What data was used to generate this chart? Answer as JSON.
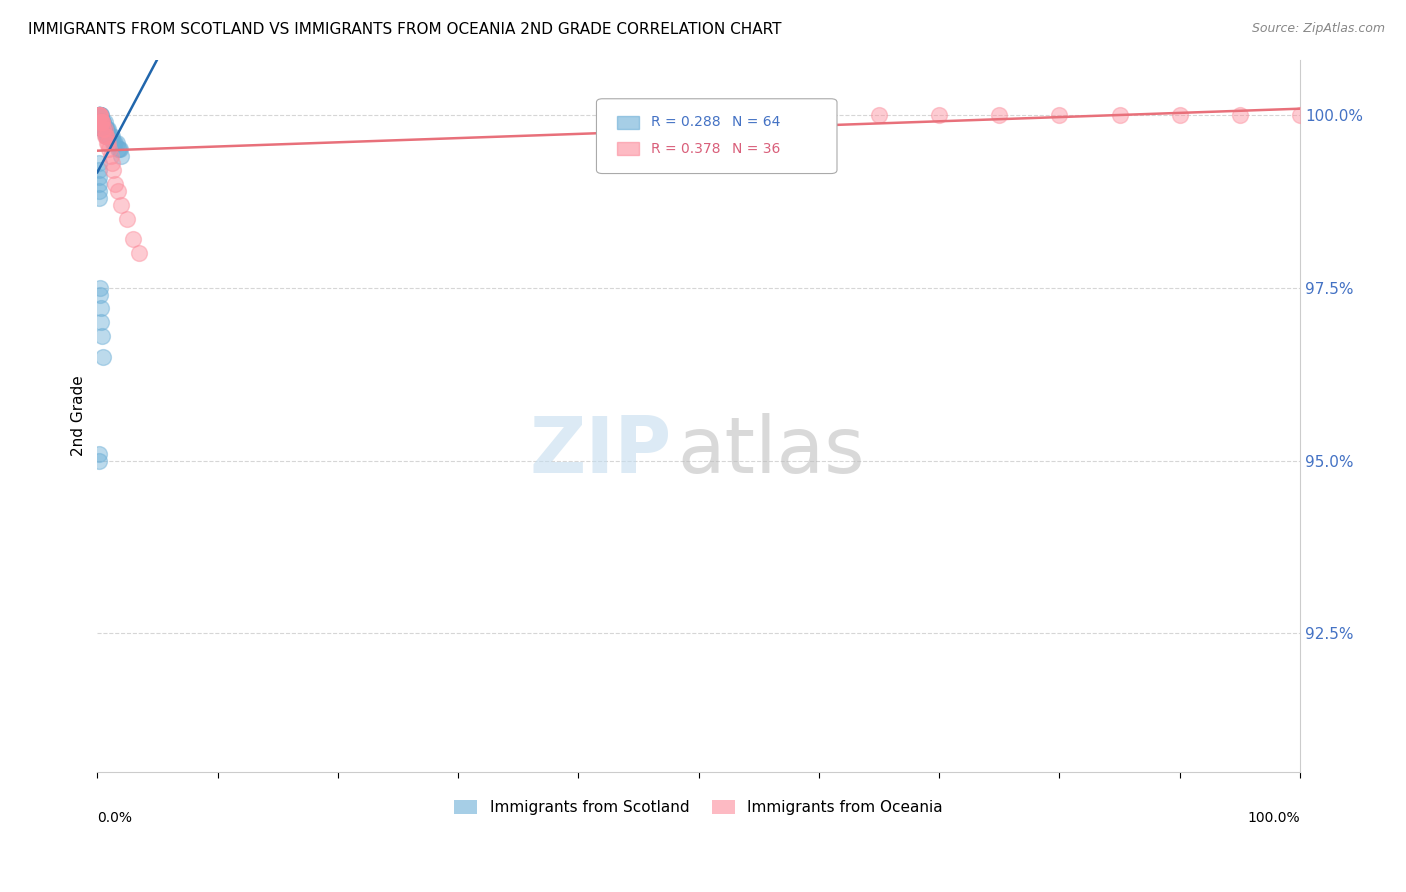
{
  "title": "IMMIGRANTS FROM SCOTLAND VS IMMIGRANTS FROM OCEANIA 2ND GRADE CORRELATION CHART",
  "source": "Source: ZipAtlas.com",
  "ylabel": "2nd Grade",
  "ytick_labels": [
    "100.0%",
    "97.5%",
    "95.0%",
    "92.5%"
  ],
  "ytick_values": [
    1.0,
    0.975,
    0.95,
    0.925
  ],
  "xlim": [
    0.0,
    1.0
  ],
  "ylim": [
    0.905,
    1.008
  ],
  "legend_r1": "R = 0.288",
  "legend_n1": "N = 64",
  "legend_r2": "R = 0.378",
  "legend_n2": "N = 36",
  "scotland_color": "#6baed6",
  "oceania_color": "#fc8d9c",
  "scotland_line_color": "#2166ac",
  "oceania_line_color": "#e8707a",
  "grid_color": "#cccccc",
  "scotland_x": [
    0.001,
    0.001,
    0.001,
    0.001,
    0.001,
    0.001,
    0.001,
    0.001,
    0.001,
    0.001,
    0.002,
    0.002,
    0.002,
    0.002,
    0.002,
    0.003,
    0.003,
    0.003,
    0.003,
    0.003,
    0.004,
    0.004,
    0.004,
    0.004,
    0.005,
    0.005,
    0.005,
    0.005,
    0.006,
    0.006,
    0.006,
    0.007,
    0.007,
    0.007,
    0.008,
    0.008,
    0.009,
    0.009,
    0.01,
    0.01,
    0.011,
    0.012,
    0.013,
    0.014,
    0.015,
    0.016,
    0.017,
    0.018,
    0.019,
    0.02,
    0.001,
    0.001,
    0.001,
    0.001,
    0.001,
    0.001,
    0.002,
    0.002,
    0.003,
    0.003,
    0.004,
    0.005,
    0.001,
    0.001
  ],
  "scotland_y": [
    1.0,
    1.0,
    1.0,
    1.0,
    1.0,
    1.0,
    1.0,
    1.0,
    1.0,
    1.0,
    1.0,
    1.0,
    1.0,
    1.0,
    0.999,
    1.0,
    1.0,
    0.999,
    0.999,
    0.999,
    0.999,
    0.999,
    0.999,
    0.998,
    0.999,
    0.999,
    0.998,
    0.998,
    0.999,
    0.998,
    0.998,
    0.998,
    0.998,
    0.997,
    0.998,
    0.997,
    0.998,
    0.997,
    0.997,
    0.997,
    0.997,
    0.997,
    0.996,
    0.996,
    0.996,
    0.996,
    0.995,
    0.995,
    0.995,
    0.994,
    0.993,
    0.992,
    0.991,
    0.99,
    0.989,
    0.988,
    0.975,
    0.974,
    0.972,
    0.97,
    0.968,
    0.965,
    0.951,
    0.95
  ],
  "oceania_x": [
    0.001,
    0.001,
    0.002,
    0.002,
    0.002,
    0.003,
    0.003,
    0.004,
    0.004,
    0.005,
    0.005,
    0.006,
    0.006,
    0.007,
    0.007,
    0.008,
    0.009,
    0.01,
    0.011,
    0.012,
    0.013,
    0.015,
    0.017,
    0.02,
    0.025,
    0.03,
    0.035,
    0.6,
    0.65,
    0.7,
    0.75,
    0.8,
    0.85,
    0.9,
    0.95,
    1.0
  ],
  "oceania_y": [
    1.0,
    1.0,
    1.0,
    1.0,
    0.999,
    0.999,
    0.999,
    0.999,
    0.999,
    0.998,
    0.998,
    0.998,
    0.997,
    0.997,
    0.997,
    0.996,
    0.996,
    0.995,
    0.994,
    0.993,
    0.992,
    0.99,
    0.989,
    0.987,
    0.985,
    0.982,
    0.98,
    1.0,
    1.0,
    1.0,
    1.0,
    1.0,
    1.0,
    1.0,
    1.0,
    1.0
  ],
  "scotland_trend": [
    0.0,
    1.0,
    0.9975,
    1.005
  ],
  "oceania_trend_start_x": 0.0,
  "oceania_trend_end_x": 1.0,
  "oceania_trend_start_y": 0.984,
  "oceania_trend_end_y": 1.001
}
